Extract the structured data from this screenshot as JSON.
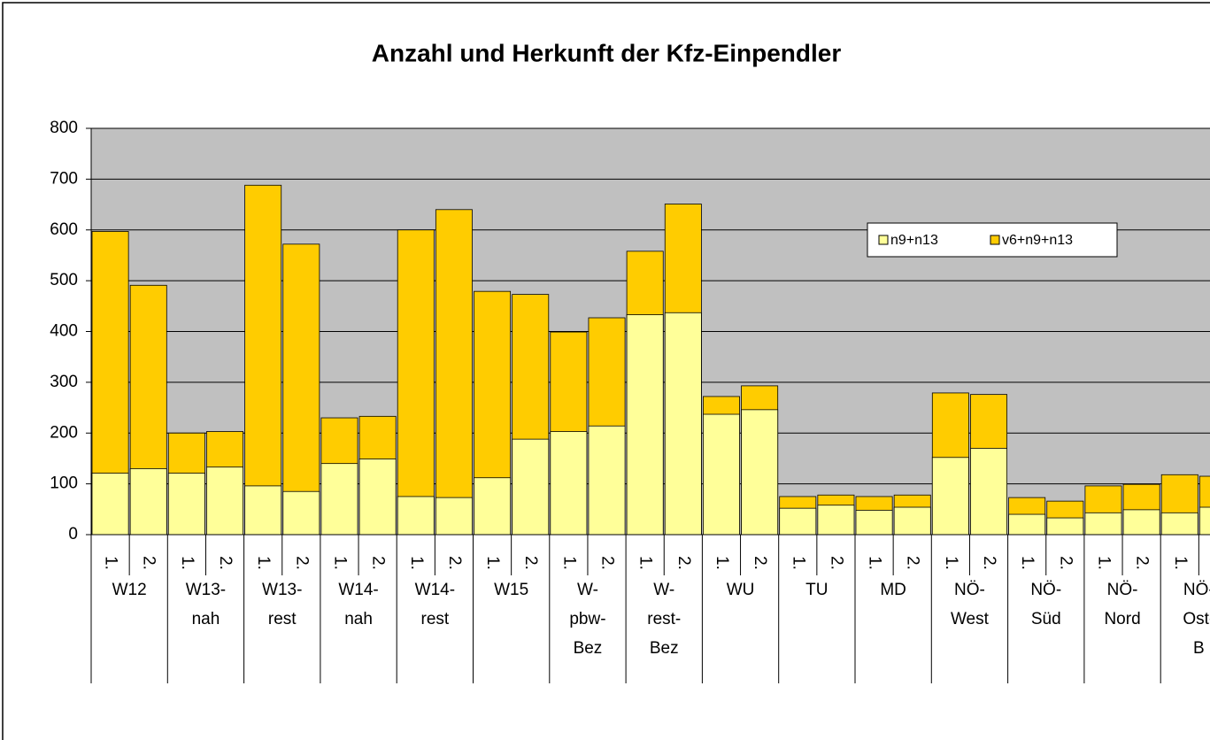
{
  "chart_data": {
    "type": "bar",
    "title": "Anzahl und Herkunft der Kfz-Einpendler",
    "groups": [
      [
        "W12"
      ],
      [
        "W13-",
        "nah"
      ],
      [
        "W13-",
        "rest"
      ],
      [
        "W14-",
        "nah"
      ],
      [
        "W14-",
        "rest"
      ],
      [
        "W15"
      ],
      [
        "W-",
        "pbw-",
        "Bez"
      ],
      [
        "W-",
        "rest-",
        "Bez"
      ],
      [
        "WU"
      ],
      [
        "TU"
      ],
      [
        "MD"
      ],
      [
        "NÖ-",
        "West"
      ],
      [
        "NÖ-",
        "Süd"
      ],
      [
        "NÖ-",
        "Nord"
      ],
      [
        "NÖ-",
        "Ost-",
        "B"
      ]
    ],
    "subcategories": [
      "1.",
      "2."
    ],
    "series": [
      {
        "name": "v6+n9+n13",
        "color": "#ffcc00",
        "values": [
          597,
          491,
          200,
          203,
          688,
          572,
          230,
          233,
          600,
          640,
          479,
          473,
          399,
          427,
          558,
          651,
          272,
          293,
          75,
          78,
          75,
          78,
          279,
          276,
          73,
          66,
          96,
          99,
          118,
          115
        ]
      },
      {
        "name": "n9+n13",
        "color": "#ffff99",
        "values": [
          121,
          130,
          121,
          133,
          96,
          85,
          140,
          149,
          75,
          73,
          112,
          188,
          203,
          214,
          433,
          437,
          237,
          246,
          52,
          58,
          48,
          54,
          152,
          170,
          40,
          33,
          43,
          49,
          43,
          54
        ]
      }
    ],
    "ylim": [
      0,
      800
    ],
    "yticks": [
      0,
      100,
      200,
      300,
      400,
      500,
      600,
      700,
      800
    ],
    "grid": true,
    "legend": "upper right"
  }
}
